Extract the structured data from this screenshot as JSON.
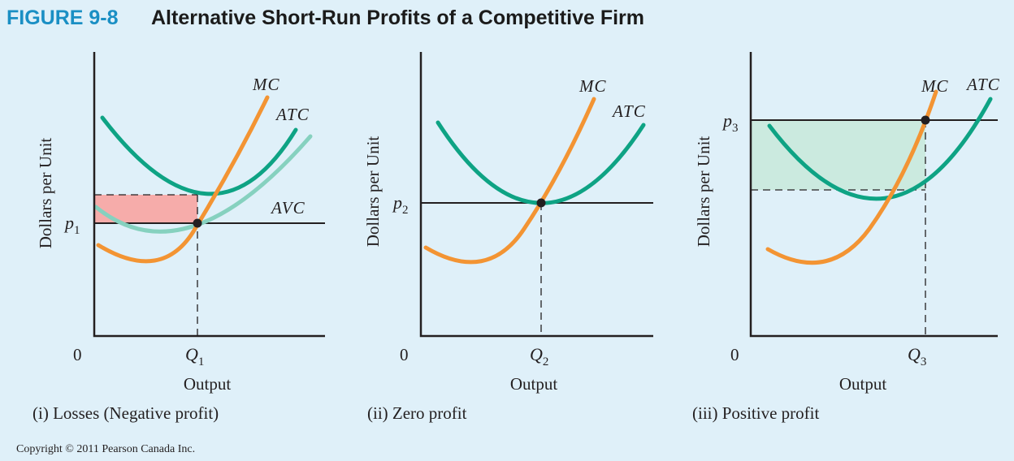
{
  "figure": {
    "number": "FIGURE 9-8",
    "title": "Alternative Short-Run Profits of a Competitive Firm"
  },
  "panels": [
    {
      "caption": "(i) Losses (Negative profit)",
      "y_axis_label": "Dollars per Unit",
      "x_axis_label": "Output",
      "origin_label": "0",
      "price_label": "p",
      "price_subscript": "1",
      "quantity_label": "Q",
      "quantity_subscript": "1",
      "curves": [
        "MC",
        "ATC",
        "AVC"
      ],
      "shaded_area": "loss",
      "equilibrium_point": {
        "description": "P = MC at Q1, below ATC"
      }
    },
    {
      "caption": "(ii) Zero profit",
      "y_axis_label": "Dollars per Unit",
      "x_axis_label": "Output",
      "origin_label": "0",
      "price_label": "p",
      "price_subscript": "2",
      "quantity_label": "Q",
      "quantity_subscript": "2",
      "curves": [
        "MC",
        "ATC"
      ],
      "shaded_area": "none",
      "equilibrium_point": {
        "description": "P = MC = minimum ATC at Q2"
      }
    },
    {
      "caption": "(iii) Positive profit",
      "y_axis_label": "Dollars per Unit",
      "x_axis_label": "Output",
      "origin_label": "0",
      "price_label": "p",
      "price_subscript": "3",
      "quantity_label": "Q",
      "quantity_subscript": "3",
      "curves": [
        "MC",
        "ATC"
      ],
      "shaded_area": "profit",
      "equilibrium_point": {
        "description": "P = MC at Q3, above ATC"
      }
    }
  ],
  "colors": {
    "background": "#dff0f9",
    "figure_number": "#1a8fc4",
    "mc": "#f39433",
    "atc": "#0ea384",
    "avc": "#86d1bf",
    "loss": "#f6acaa",
    "profit": "#cbeadf"
  },
  "copyright": "Copyright © 2011 Pearson Canada Inc."
}
